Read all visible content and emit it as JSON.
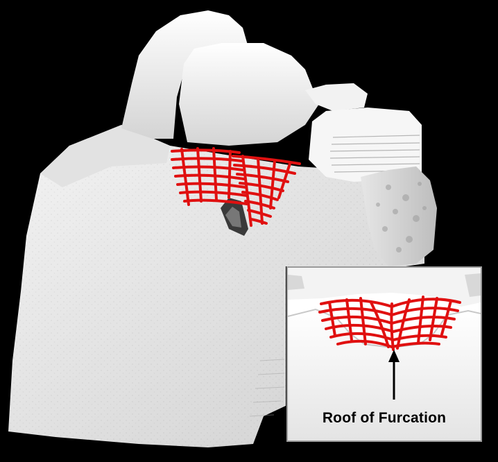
{
  "figure": {
    "background_color": "#000000",
    "bone_color": "#f0f0f0",
    "scaffold_color": "#e01010",
    "inset": {
      "border_color": "#9a9a9a",
      "annotation": "Roof of Furcation",
      "arrow_icon": "up-arrow-icon"
    }
  }
}
